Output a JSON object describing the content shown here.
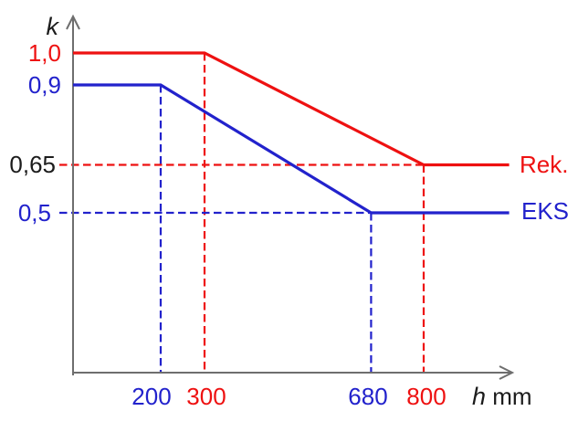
{
  "colors": {
    "red": "#ee1111",
    "blue": "#2222cc",
    "black": "#1c1c1c",
    "axis": "#6e6e6e",
    "background": "#ffffff"
  },
  "chart_data": {
    "type": "line",
    "title": "",
    "ylabel": "k",
    "xlabel_var": "h",
    "xlabel_unit": "mm",
    "x_unit": "mm",
    "xlim": [
      0,
      1010
    ],
    "ylim": [
      0,
      1.09
    ],
    "grid": false,
    "legend_position": "right of line ends",
    "series": [
      {
        "name": "Rek.",
        "color": "red",
        "points": [
          [
            0,
            1.0
          ],
          [
            300,
            1.0
          ],
          [
            800,
            0.65
          ],
          [
            995,
            0.65
          ]
        ]
      },
      {
        "name": "EKS",
        "color": "blue",
        "points": [
          [
            0,
            0.9
          ],
          [
            200,
            0.9
          ],
          [
            680,
            0.5
          ],
          [
            995,
            0.5
          ]
        ]
      }
    ],
    "y_ticks": [
      {
        "label": "1,0",
        "value": 1.0,
        "color": "red"
      },
      {
        "label": "0,9",
        "value": 0.9,
        "color": "blue"
      },
      {
        "label": "0,65",
        "value": 0.65,
        "color": "black"
      },
      {
        "label": "0,5",
        "value": 0.5,
        "color": "blue"
      }
    ],
    "x_ticks": [
      {
        "label": "200",
        "value": 200,
        "color": "blue"
      },
      {
        "label": "300",
        "value": 300,
        "color": "red"
      },
      {
        "label": "680",
        "value": 680,
        "color": "blue"
      },
      {
        "label": "800",
        "value": 800,
        "color": "red"
      }
    ],
    "guides": [
      {
        "name": "v-200",
        "type": "v",
        "x": 200,
        "from_k": 0.9,
        "color": "blue"
      },
      {
        "name": "v-300",
        "type": "v",
        "x": 300,
        "from_k": 1.0,
        "color": "red"
      },
      {
        "name": "v-680",
        "type": "v",
        "x": 680,
        "from_k": 0.5,
        "color": "blue"
      },
      {
        "name": "v-800",
        "type": "v",
        "x": 800,
        "from_k": 0.65,
        "color": "red"
      },
      {
        "name": "h-0.65",
        "type": "h",
        "k": 0.65,
        "to_x": 800,
        "color": "red"
      },
      {
        "name": "h-0.5",
        "type": "h",
        "k": 0.5,
        "to_x": 680,
        "color": "blue"
      }
    ]
  }
}
